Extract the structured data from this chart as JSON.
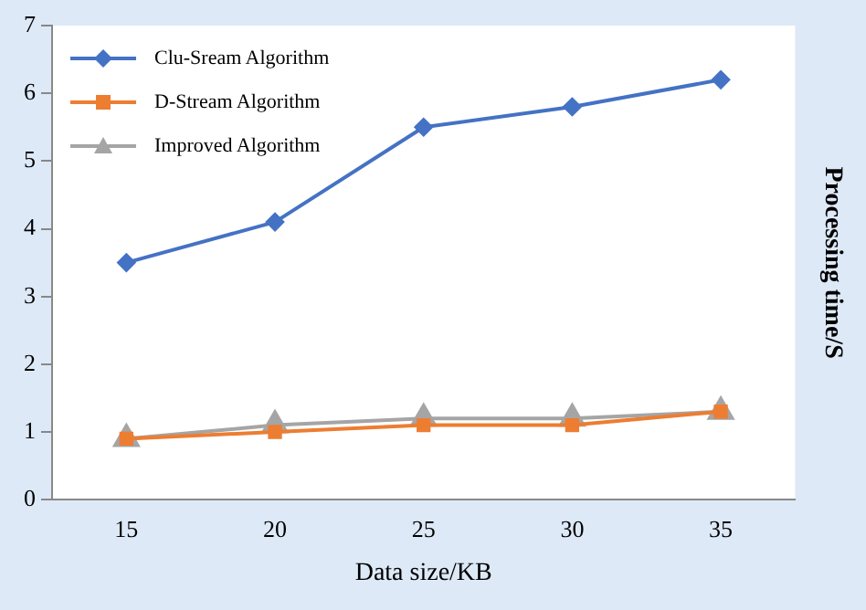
{
  "chart_data": {
    "type": "line",
    "xlabel": "Data size/KB",
    "ylabel": "Processing time/S",
    "categories": [
      "15",
      "20",
      "25",
      "30",
      "35"
    ],
    "ylim": [
      0,
      7
    ],
    "yticks": [
      0,
      1,
      2,
      3,
      4,
      5,
      6,
      7
    ],
    "grid": false,
    "legend": "top left",
    "series": [
      {
        "name": "Clu-Sream Algorithm",
        "color": "#4472c4",
        "marker": "diamond",
        "values": [
          3.5,
          4.1,
          5.5,
          5.8,
          6.2
        ]
      },
      {
        "name": "D-Stream Algorithm",
        "color": "#ed7d31",
        "marker": "square",
        "values": [
          0.9,
          1.0,
          1.1,
          1.1,
          1.3
        ]
      },
      {
        "name": "Improved Algorithm",
        "color": "#a5a5a5",
        "marker": "triangle",
        "values": [
          0.9,
          1.1,
          1.2,
          1.2,
          1.3
        ]
      }
    ]
  }
}
